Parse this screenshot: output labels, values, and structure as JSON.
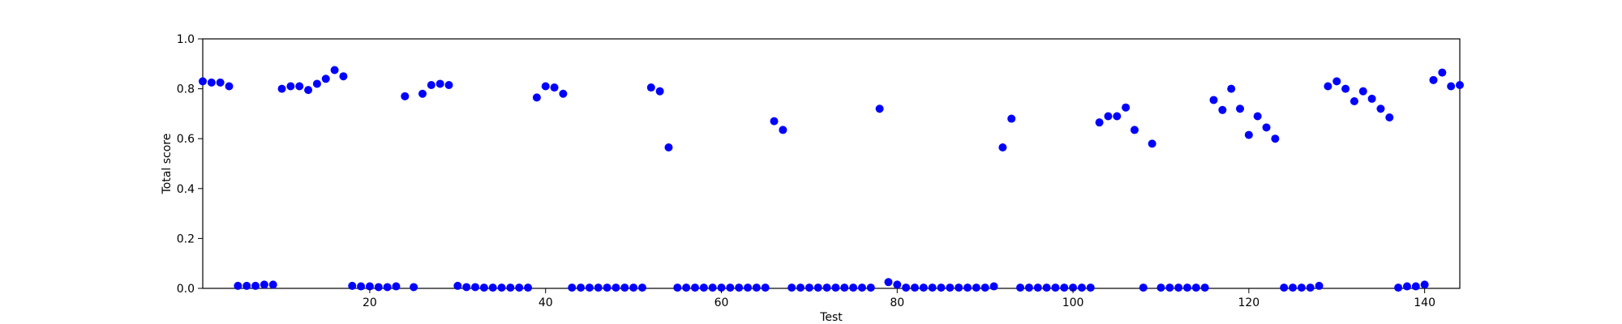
{
  "chart_data": {
    "type": "scatter",
    "xlabel": "Test",
    "ylabel": "Total score",
    "xlim": [
      1,
      144
    ],
    "ylim": [
      0.0,
      1.0
    ],
    "xticks": [
      20,
      40,
      60,
      80,
      100,
      120,
      140
    ],
    "yticks": [
      0.0,
      0.2,
      0.4,
      0.6,
      0.8,
      1.0
    ],
    "tick_labels_y": [
      "0.0",
      "0.2",
      "0.4",
      "0.6",
      "0.8",
      "1.0"
    ],
    "tick_labels_x": [
      "20",
      "40",
      "60",
      "80",
      "100",
      "120",
      "140"
    ],
    "grid": false,
    "marker_color": "#0000ff",
    "x": [
      1,
      2,
      3,
      4,
      5,
      6,
      7,
      8,
      9,
      10,
      11,
      12,
      13,
      14,
      15,
      16,
      17,
      18,
      19,
      20,
      21,
      22,
      23,
      24,
      25,
      26,
      27,
      28,
      29,
      30,
      31,
      32,
      33,
      34,
      35,
      36,
      37,
      38,
      39,
      40,
      41,
      42,
      43,
      44,
      45,
      46,
      47,
      48,
      49,
      50,
      51,
      52,
      53,
      54,
      55,
      56,
      57,
      58,
      59,
      60,
      61,
      62,
      63,
      64,
      65,
      66,
      67,
      68,
      69,
      70,
      71,
      72,
      73,
      74,
      75,
      76,
      77,
      78,
      79,
      80,
      81,
      82,
      83,
      84,
      85,
      86,
      87,
      88,
      89,
      90,
      91,
      92,
      93,
      94,
      95,
      96,
      97,
      98,
      99,
      100,
      101,
      102,
      103,
      104,
      105,
      106,
      107,
      108,
      109,
      110,
      111,
      112,
      113,
      114,
      115,
      116,
      117,
      118,
      119,
      120,
      121,
      122,
      123,
      124,
      125,
      126,
      127,
      128,
      129,
      130,
      131,
      132,
      133,
      134,
      135,
      136,
      137,
      138,
      139,
      140,
      141,
      142,
      143,
      144
    ],
    "y": [
      0.83,
      0.825,
      0.825,
      0.81,
      0.01,
      0.01,
      0.01,
      0.015,
      0.015,
      0.8,
      0.81,
      0.81,
      0.795,
      0.82,
      0.84,
      0.875,
      0.85,
      0.01,
      0.008,
      0.008,
      0.005,
      0.005,
      0.008,
      0.77,
      0.005,
      0.78,
      0.815,
      0.82,
      0.815,
      0.01,
      0.005,
      0.005,
      0.003,
      0.003,
      0.003,
      0.003,
      0.003,
      0.003,
      0.765,
      0.81,
      0.805,
      0.78,
      0.003,
      0.003,
      0.003,
      0.003,
      0.003,
      0.003,
      0.003,
      0.003,
      0.003,
      0.805,
      0.79,
      0.565,
      0.003,
      0.003,
      0.003,
      0.003,
      0.003,
      0.003,
      0.003,
      0.003,
      0.003,
      0.003,
      0.003,
      0.67,
      0.635,
      0.003,
      0.003,
      0.003,
      0.003,
      0.003,
      0.003,
      0.003,
      0.003,
      0.003,
      0.003,
      0.72,
      0.025,
      0.015,
      0.003,
      0.003,
      0.003,
      0.003,
      0.003,
      0.003,
      0.003,
      0.003,
      0.003,
      0.003,
      0.008,
      0.565,
      0.68,
      0.003,
      0.003,
      0.003,
      0.003,
      0.003,
      0.003,
      0.003,
      0.003,
      0.003,
      0.665,
      0.69,
      0.69,
      0.725,
      0.635,
      0.003,
      0.58,
      0.003,
      0.003,
      0.003,
      0.003,
      0.003,
      0.003,
      0.755,
      0.715,
      0.8,
      0.72,
      0.615,
      0.69,
      0.645,
      0.6,
      0.003,
      0.003,
      0.003,
      0.003,
      0.01,
      0.81,
      0.83,
      0.8,
      0.75,
      0.79,
      0.76,
      0.72,
      0.685,
      0.003,
      0.008,
      0.008,
      0.015,
      0.835,
      0.865,
      0.81,
      0.815
    ]
  }
}
